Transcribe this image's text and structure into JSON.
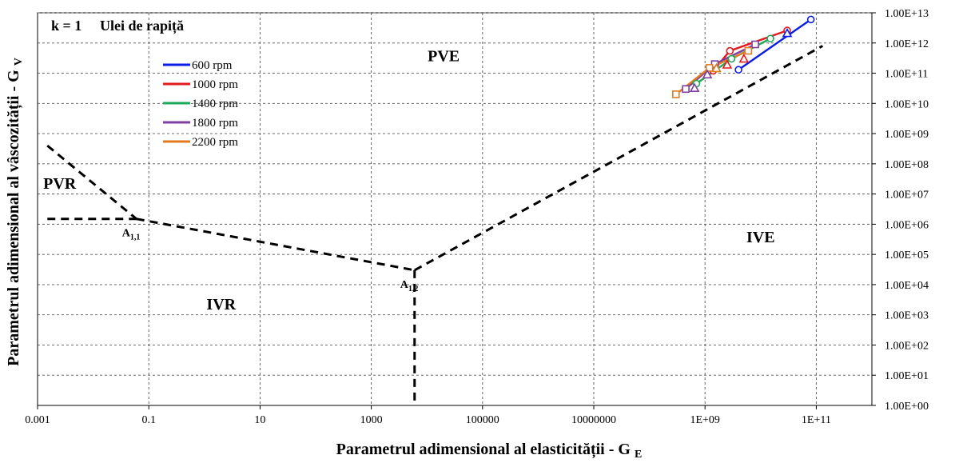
{
  "chart_data": {
    "type": "line",
    "title": "Ulei de rapiță",
    "annotation_k": "k = 1",
    "xlabel": "Parametrul adimensional al elasticității",
    "xlabel_symbol": "G",
    "xlabel_sub": "E",
    "ylabel": "Parametrul adimensional al vâscozității",
    "ylabel_symbol": "G",
    "ylabel_sub": "V",
    "x_scale": "log",
    "y_scale": "log",
    "xlim": [
      0.001,
      1000000000000.0
    ],
    "ylim": [
      1,
      10000000000000.0
    ],
    "x_ticks": [
      {
        "value": 0.001,
        "label": "0.001"
      },
      {
        "value": 0.1,
        "label": "0.1"
      },
      {
        "value": 10,
        "label": "10"
      },
      {
        "value": 1000,
        "label": "1000"
      },
      {
        "value": 100000,
        "label": "100000"
      },
      {
        "value": 10000000,
        "label": "10000000"
      },
      {
        "value": 1000000000,
        "label": "1E+09"
      },
      {
        "value": 100000000000,
        "label": "1E+11"
      }
    ],
    "y_ticks": [
      {
        "value": 1,
        "label": "1.00E+00"
      },
      {
        "value": 10,
        "label": "1.00E+01"
      },
      {
        "value": 100,
        "label": "1.00E+02"
      },
      {
        "value": 1000,
        "label": "1.00E+03"
      },
      {
        "value": 10000,
        "label": "1.00E+04"
      },
      {
        "value": 100000,
        "label": "1.00E+05"
      },
      {
        "value": 1000000,
        "label": "1.00E+06"
      },
      {
        "value": 10000000,
        "label": "1.00E+07"
      },
      {
        "value": 100000000,
        "label": "1.00E+08"
      },
      {
        "value": 1000000000,
        "label": "1.00E+09"
      },
      {
        "value": 10000000000,
        "label": "1.00E+10"
      },
      {
        "value": 100000000000,
        "label": "1.00E+11"
      },
      {
        "value": 1000000000000,
        "label": "1.00E+12"
      },
      {
        "value": 10000000000000,
        "label": "1.00E+13"
      }
    ],
    "grid": true,
    "legend_position": "top-left",
    "series": [
      {
        "name": "600 rpm",
        "color": "#0a1ee6",
        "marker": "circle",
        "x": [
          4000000000.0,
          80000000000.0
        ],
        "y": [
          130000000000.0,
          6000000000000.0
        ]
      },
      {
        "name": "1000 rpm",
        "color": "#e31a1c",
        "marker": "circle",
        "x": [
          1400000000.0,
          2800000000.0,
          30000000000.0
        ],
        "y": [
          120000000000.0,
          550000000000.0,
          2600000000000.0
        ]
      },
      {
        "name": "1400 rpm",
        "color": "#1fa85a",
        "marker": "circle",
        "x": [
          700000000.0,
          3000000000.0,
          15000000000.0
        ],
        "y": [
          45000000000.0,
          300000000000.0,
          1400000000000.0
        ]
      },
      {
        "name": "1800 rpm",
        "color": "#7e3fa0",
        "marker": "square",
        "x": [
          450000000.0,
          1500000000.0,
          8000000000.0
        ],
        "y": [
          30000000000.0,
          200000000000.0,
          900000000000.0
        ]
      },
      {
        "name": "2200 rpm",
        "color": "#e07b20",
        "marker": "square",
        "x": [
          300000000.0,
          1200000000.0,
          6000000000.0
        ],
        "y": [
          20000000000.0,
          150000000000.0,
          550000000000.0
        ]
      }
    ],
    "markers_extra": [
      {
        "series": 0,
        "marker": "triangle",
        "x": [
          30000000000.0
        ],
        "y": [
          2100000000000.0
        ]
      },
      {
        "series": 1,
        "marker": "triangle",
        "x": [
          5000000000.0,
          2500000000.0
        ],
        "y": [
          300000000000.0,
          190000000000.0
        ]
      },
      {
        "series": 3,
        "marker": "triangle",
        "x": [
          650000000.0,
          1100000000.0
        ],
        "y": [
          32000000000.0,
          90000000000.0
        ]
      },
      {
        "series": 4,
        "marker": "triangle",
        "x": [
          1600000000.0
        ],
        "y": [
          145000000000.0
        ]
      }
    ],
    "boundary_lines": [
      {
        "x": [
          0.0015,
          0.06
        ],
        "y": [
          400000000.0,
          1500000.0
        ]
      },
      {
        "x": [
          0.0015,
          0.06
        ],
        "y": [
          1500000.0,
          1500000.0
        ]
      },
      {
        "x": [
          0.06,
          6000
        ],
        "y": [
          1500000.0,
          30000.0
        ]
      },
      {
        "x": [
          6000,
          6000
        ],
        "y": [
          30000.0,
          1
        ]
      },
      {
        "x": [
          6000,
          130000000000.0
        ],
        "y": [
          30000.0,
          800000000000.0
        ]
      }
    ],
    "regions": [
      {
        "label": "PVE",
        "x": 20000,
        "y": 250000000000.0
      },
      {
        "label": "PVR",
        "x": 0.0025,
        "y": 15000000.0
      },
      {
        "label": "IVR",
        "x": 2,
        "y": 1500.0
      },
      {
        "label": "IVE",
        "x": 10000000000.0,
        "y": 250000.0
      }
    ],
    "points": [
      {
        "label": "A",
        "sub": "1,1",
        "x": 0.06,
        "y": 1500000.0
      },
      {
        "label": "A",
        "sub": "1,2",
        "x": 6000,
        "y": 30000.0
      }
    ]
  }
}
